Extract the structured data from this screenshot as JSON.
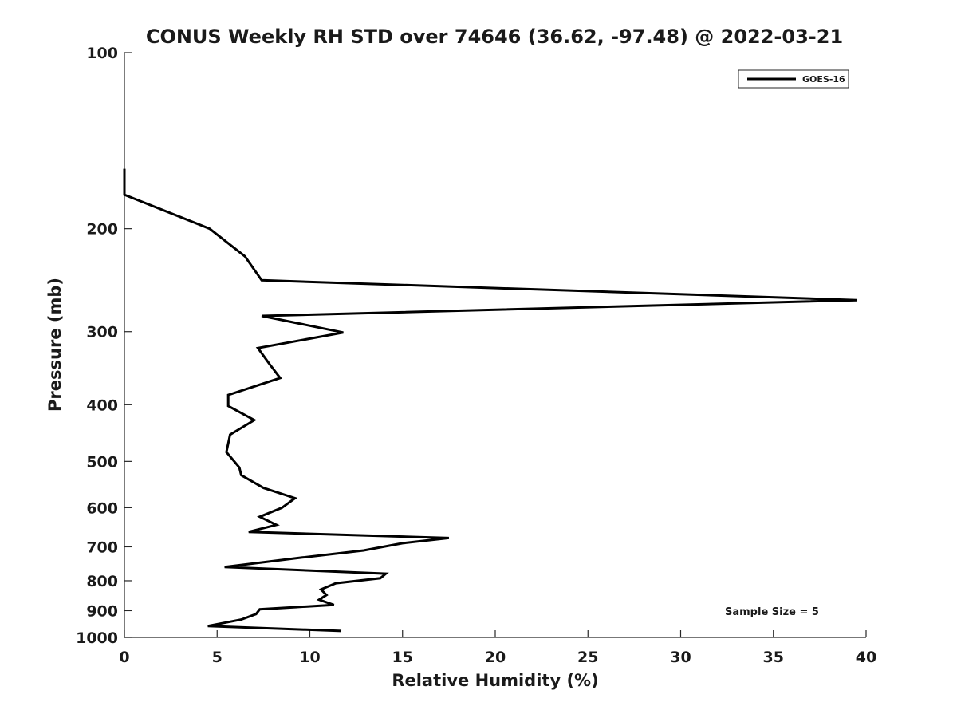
{
  "chart_data": {
    "type": "line",
    "title": "CONUS Weekly RH STD over 74646 (36.62, -97.48) @ 2022-03-21",
    "xlabel": "Relative Humidity (%)",
    "ylabel": "Pressure (mb)",
    "xlim": [
      0,
      40
    ],
    "ylim": [
      100,
      1000
    ],
    "y_scale": "log",
    "y_inverted": true,
    "grid": false,
    "legend_position": "top-right",
    "x_ticks": [
      "0",
      "5",
      "10",
      "15",
      "20",
      "25",
      "30",
      "35",
      "40"
    ],
    "y_ticks": [
      "100",
      "200",
      "300",
      "400",
      "500",
      "600",
      "700",
      "800",
      "900",
      "1000"
    ],
    "annotation": "Sample Size = 5",
    "series": [
      {
        "name": "GOES-16",
        "color": "#000000",
        "x": [
          0,
          0,
          4.6,
          6.5,
          7.4,
          39.5,
          7.4,
          11.8,
          7.2,
          7.8,
          8.4,
          5.6,
          5.6,
          7.0,
          5.7,
          5.5,
          6.2,
          6.3,
          7.5,
          9.2,
          8.5,
          7.3,
          8.2,
          6.7,
          17.5,
          15.0,
          12.9,
          9.6,
          5.4,
          14.1,
          13.8,
          11.4,
          10.6,
          10.9,
          10.5,
          11.3,
          7.3,
          7.1,
          6.3,
          4.5,
          11.7
        ],
        "y": [
          158,
          175,
          200,
          223,
          245,
          265,
          282,
          301,
          320,
          340,
          360,
          385,
          402,
          425,
          450,
          482,
          512,
          528,
          555,
          578,
          600,
          622,
          642,
          660,
          676,
          690,
          710,
          730,
          758,
          778,
          792,
          808,
          828,
          846,
          862,
          880,
          895,
          912,
          932,
          956,
          975
        ]
      }
    ]
  }
}
